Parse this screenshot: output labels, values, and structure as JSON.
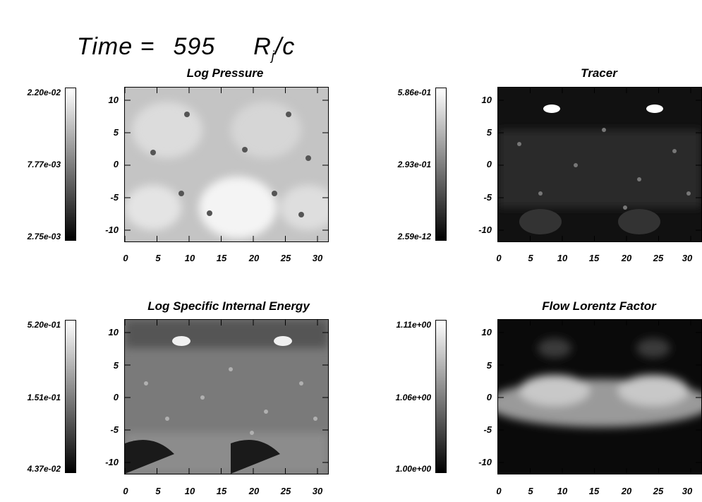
{
  "header": {
    "time_label": "Time =",
    "time_value": "595",
    "unit_main": "R",
    "unit_sub": "j",
    "unit_tail": "/c"
  },
  "panels": [
    {
      "title": "Log Pressure",
      "colorbar": [
        "2.20e-02",
        "7.77e-03",
        "2.75e-03"
      ],
      "y_ticks": [
        "10",
        "5",
        "0",
        "-5",
        "-10"
      ],
      "x_ticks": [
        "0",
        "5",
        "10",
        "15",
        "20",
        "25",
        "30"
      ],
      "field": "pressure"
    },
    {
      "title": "Tracer",
      "colorbar": [
        "5.86e-01",
        "2.93e-01",
        "2.59e-12"
      ],
      "y_ticks": [
        "10",
        "5",
        "0",
        "-5",
        "-10"
      ],
      "x_ticks": [
        "0",
        "5",
        "10",
        "15",
        "20",
        "25",
        "30"
      ],
      "field": "tracer"
    },
    {
      "title": "Log Specific Internal Energy",
      "colorbar": [
        "5.20e-01",
        "1.51e-01",
        "4.37e-02"
      ],
      "y_ticks": [
        "10",
        "5",
        "0",
        "-5",
        "-10"
      ],
      "x_ticks": [
        "0",
        "5",
        "10",
        "15",
        "20",
        "25",
        "30"
      ],
      "field": "energy"
    },
    {
      "title": "Flow Lorentz Factor",
      "colorbar": [
        "1.11e+00",
        "1.06e+00",
        "1.00e+00"
      ],
      "y_ticks": [
        "10",
        "5",
        "0",
        "-5",
        "-10"
      ],
      "x_ticks": [
        "0",
        "5",
        "10",
        "15",
        "20",
        "25",
        "30"
      ],
      "field": "lorentz"
    }
  ]
}
